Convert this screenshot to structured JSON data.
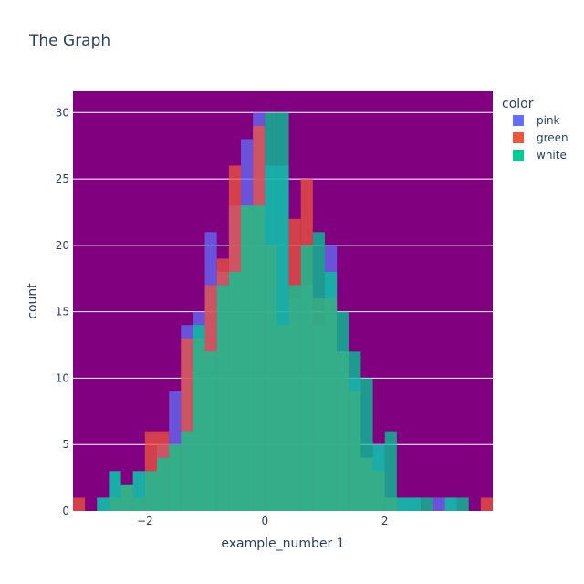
{
  "chart_data": {
    "type": "bar",
    "title": "The Graph",
    "xlabel": "example_number 1",
    "ylabel": "count",
    "barmode": "overlay",
    "bin_width": 0.2,
    "xlim": [
      -3.2,
      3.8
    ],
    "ylim": [
      0,
      31.6
    ],
    "x_ticks": [
      -2,
      0,
      2
    ],
    "x_tick_labels": [
      "−2",
      "0",
      "2"
    ],
    "y_ticks": [
      0,
      5,
      10,
      15,
      20,
      25,
      30
    ],
    "y_tick_labels": [
      "0",
      "5",
      "10",
      "15",
      "20",
      "25",
      "30"
    ],
    "grid": true,
    "plot_background": "#800080",
    "grid_color": "#ffffff",
    "bar_opacity": 0.75,
    "legend": {
      "title": "color",
      "position": "top-right"
    },
    "series": [
      {
        "name": "pink",
        "color": "#636efa",
        "bins": [
          {
            "x0": -2.8,
            "count": 1
          },
          {
            "x0": -2.6,
            "count": 3
          },
          {
            "x0": -2.4,
            "count": 2
          },
          {
            "x0": -2.2,
            "count": 3
          },
          {
            "x0": -2.0,
            "count": 3
          },
          {
            "x0": -1.8,
            "count": 5
          },
          {
            "x0": -1.6,
            "count": 9
          },
          {
            "x0": -1.4,
            "count": 14
          },
          {
            "x0": -1.2,
            "count": 15
          },
          {
            "x0": -1.0,
            "count": 21
          },
          {
            "x0": -0.8,
            "count": 18
          },
          {
            "x0": -0.6,
            "count": 23
          },
          {
            "x0": -0.4,
            "count": 28
          },
          {
            "x0": -0.2,
            "count": 30
          },
          {
            "x0": 0.0,
            "count": 26
          },
          {
            "x0": 0.2,
            "count": 26
          },
          {
            "x0": 0.4,
            "count": 16
          },
          {
            "x0": 0.6,
            "count": 17
          },
          {
            "x0": 0.8,
            "count": 14
          },
          {
            "x0": 1.0,
            "count": 20
          },
          {
            "x0": 1.2,
            "count": 12
          },
          {
            "x0": 1.4,
            "count": 10
          },
          {
            "x0": 1.6,
            "count": 4
          },
          {
            "x0": 1.8,
            "count": 5
          },
          {
            "x0": 2.0,
            "count": 1
          },
          {
            "x0": 2.2,
            "count": 1
          },
          {
            "x0": 2.4,
            "count": 1
          },
          {
            "x0": 2.8,
            "count": 1
          },
          {
            "x0": 3.0,
            "count": 1
          }
        ]
      },
      {
        "name": "green",
        "color": "#ef553b",
        "bins": [
          {
            "x0": -3.2,
            "count": 1
          },
          {
            "x0": -2.6,
            "count": 1
          },
          {
            "x0": -2.4,
            "count": 2
          },
          {
            "x0": -2.2,
            "count": 1
          },
          {
            "x0": -2.0,
            "count": 6
          },
          {
            "x0": -1.8,
            "count": 6
          },
          {
            "x0": -1.6,
            "count": 5
          },
          {
            "x0": -1.4,
            "count": 13
          },
          {
            "x0": -1.2,
            "count": 13
          },
          {
            "x0": -1.0,
            "count": 17
          },
          {
            "x0": -0.8,
            "count": 19
          },
          {
            "x0": -0.6,
            "count": 26
          },
          {
            "x0": -0.4,
            "count": 23
          },
          {
            "x0": -0.2,
            "count": 29
          },
          {
            "x0": 0.0,
            "count": 20
          },
          {
            "x0": 0.2,
            "count": 14
          },
          {
            "x0": 0.4,
            "count": 22
          },
          {
            "x0": 0.6,
            "count": 25
          },
          {
            "x0": 0.8,
            "count": 16
          },
          {
            "x0": 1.0,
            "count": 16
          },
          {
            "x0": 1.2,
            "count": 12
          },
          {
            "x0": 1.4,
            "count": 9
          },
          {
            "x0": 1.6,
            "count": 4
          },
          {
            "x0": 1.8,
            "count": 3
          },
          {
            "x0": 2.0,
            "count": 1
          },
          {
            "x0": 3.6,
            "count": 1
          }
        ]
      },
      {
        "name": "white",
        "color": "#00cc96",
        "bins": [
          {
            "x0": -2.8,
            "count": 1
          },
          {
            "x0": -2.6,
            "count": 3
          },
          {
            "x0": -2.4,
            "count": 2
          },
          {
            "x0": -2.2,
            "count": 3
          },
          {
            "x0": -2.0,
            "count": 3
          },
          {
            "x0": -1.8,
            "count": 4
          },
          {
            "x0": -1.6,
            "count": 5
          },
          {
            "x0": -1.4,
            "count": 6
          },
          {
            "x0": -1.2,
            "count": 14
          },
          {
            "x0": -1.0,
            "count": 12
          },
          {
            "x0": -0.8,
            "count": 17
          },
          {
            "x0": -0.6,
            "count": 18
          },
          {
            "x0": -0.4,
            "count": 23
          },
          {
            "x0": -0.2,
            "count": 23
          },
          {
            "x0": 0.0,
            "count": 30
          },
          {
            "x0": 0.2,
            "count": 30
          },
          {
            "x0": 0.4,
            "count": 17
          },
          {
            "x0": 0.6,
            "count": 20
          },
          {
            "x0": 0.8,
            "count": 21
          },
          {
            "x0": 1.0,
            "count": 18
          },
          {
            "x0": 1.2,
            "count": 15
          },
          {
            "x0": 1.4,
            "count": 12
          },
          {
            "x0": 1.6,
            "count": 10
          },
          {
            "x0": 1.8,
            "count": 5
          },
          {
            "x0": 2.0,
            "count": 6
          },
          {
            "x0": 2.2,
            "count": 1
          },
          {
            "x0": 2.4,
            "count": 1
          },
          {
            "x0": 2.6,
            "count": 1
          },
          {
            "x0": 3.0,
            "count": 1
          },
          {
            "x0": 3.2,
            "count": 1
          }
        ]
      }
    ]
  }
}
